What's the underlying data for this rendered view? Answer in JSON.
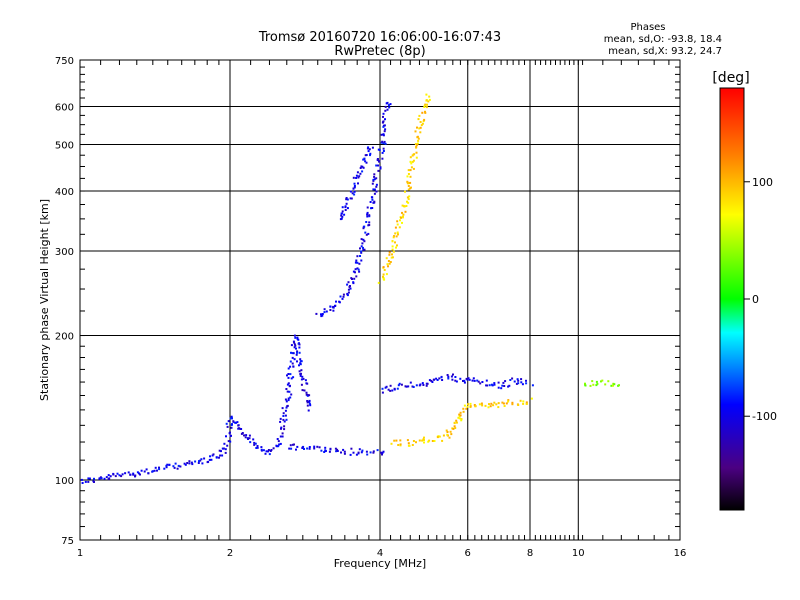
{
  "chart_data": {
    "type": "scatter",
    "title": "Tromsø 20160720 16:06:00-16:07:43",
    "subtitle": "RwPretec (8p)",
    "xlabel": "Frequency [MHz]",
    "ylabel": "Stationary phase Virtual Height [km]",
    "x_scale": "log",
    "y_scale": "log",
    "xlim": [
      1,
      16
    ],
    "ylim": [
      75,
      750
    ],
    "x_ticks": [
      1,
      2,
      4,
      6,
      8,
      10,
      16
    ],
    "y_ticks": [
      75,
      100,
      200,
      300,
      400,
      500,
      600,
      750
    ],
    "grid": true,
    "stats": {
      "heading": "Phases",
      "o_line": "mean, sd,O: -93.8, 18.4",
      "x_line": "mean, sd,X:  93.2, 24.7"
    },
    "colorbar": {
      "label": "[deg]",
      "range": [
        -180,
        180
      ],
      "ticks": [
        100,
        0,
        -100
      ],
      "tick_labels": [
        "100",
        "0",
        "-100"
      ]
    },
    "traces": [
      {
        "name_hint": "low",
        "phase": -100,
        "points": [
          [
            1.0,
            100
          ],
          [
            1.1,
            101
          ],
          [
            1.2,
            103
          ],
          [
            1.3,
            104
          ],
          [
            1.45,
            106
          ],
          [
            1.6,
            108
          ],
          [
            1.75,
            110
          ],
          [
            1.85,
            112
          ],
          [
            1.95,
            116
          ],
          [
            2.0,
            135
          ],
          [
            2.1,
            128
          ],
          [
            2.2,
            120
          ],
          [
            2.35,
            115
          ],
          [
            2.5,
            118
          ]
        ]
      },
      {
        "name_hint": "rise",
        "phase": -100,
        "points": [
          [
            2.5,
            120
          ],
          [
            2.6,
            150
          ],
          [
            2.65,
            180
          ],
          [
            2.7,
            200
          ],
          [
            2.75,
            175
          ],
          [
            2.8,
            160
          ],
          [
            2.9,
            140
          ]
        ]
      },
      {
        "name_hint": "flat",
        "phase": -100,
        "points": [
          [
            2.6,
            118
          ],
          [
            2.9,
            117
          ],
          [
            3.2,
            116
          ],
          [
            3.5,
            115
          ],
          [
            3.8,
            115
          ],
          [
            4.1,
            115
          ]
        ]
      },
      {
        "name_hint": "f2o",
        "phase": -100,
        "points": [
          [
            3.0,
            220
          ],
          [
            3.2,
            230
          ],
          [
            3.4,
            245
          ],
          [
            3.55,
            270
          ],
          [
            3.65,
            300
          ],
          [
            3.75,
            340
          ],
          [
            3.85,
            390
          ],
          [
            3.95,
            450
          ],
          [
            4.05,
            520
          ],
          [
            4.1,
            600
          ],
          [
            4.15,
            620
          ]
        ]
      },
      {
        "name_hint": "upper",
        "phase": -100,
        "points": [
          [
            3.3,
            350
          ],
          [
            3.5,
            400
          ],
          [
            3.7,
            460
          ],
          [
            3.85,
            500
          ]
        ]
      },
      {
        "name_hint": "f2x",
        "phase": 90,
        "points": [
          [
            4.0,
            260
          ],
          [
            4.2,
            300
          ],
          [
            4.35,
            340
          ],
          [
            4.5,
            390
          ],
          [
            4.6,
            440
          ],
          [
            4.7,
            500
          ],
          [
            4.8,
            560
          ],
          [
            4.9,
            600
          ],
          [
            5.0,
            640
          ]
        ]
      },
      {
        "name_hint": "mid",
        "phase": -100,
        "points": [
          [
            4.0,
            155
          ],
          [
            4.5,
            158
          ],
          [
            5.0,
            160
          ],
          [
            5.5,
            165
          ],
          [
            6.0,
            162
          ],
          [
            6.5,
            160
          ],
          [
            7.0,
            158
          ],
          [
            7.5,
            162
          ],
          [
            8.0,
            160
          ]
        ]
      },
      {
        "name_hint": "midx",
        "phase": 90,
        "points": [
          [
            4.2,
            120
          ],
          [
            4.6,
            120
          ],
          [
            5.0,
            122
          ],
          [
            5.4,
            123
          ],
          [
            6.0,
            145
          ],
          [
            6.5,
            143
          ],
          [
            7.0,
            145
          ],
          [
            7.5,
            146
          ],
          [
            8.0,
            147
          ]
        ]
      },
      {
        "name_hint": "far",
        "phase": 40,
        "points": [
          [
            10.2,
            160
          ],
          [
            10.8,
            160
          ],
          [
            11.4,
            160
          ],
          [
            12.0,
            158
          ]
        ]
      }
    ]
  }
}
